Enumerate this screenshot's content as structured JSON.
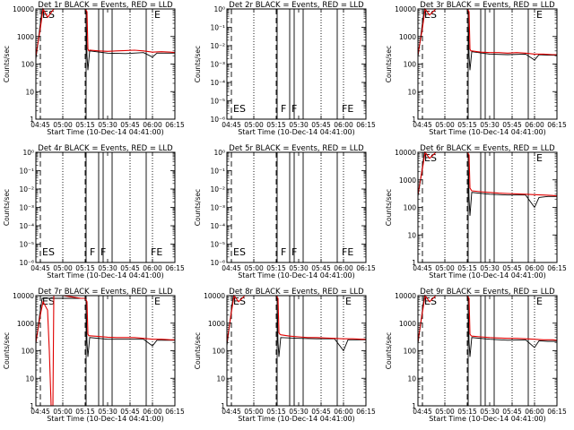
{
  "time_ticks": [
    "04:45",
    "05:00",
    "05:15",
    "05:30",
    "05:45",
    "06:00",
    "06:15"
  ],
  "log_ticks": [
    "1",
    "10",
    "100",
    "1000",
    "10000"
  ],
  "tiny_log_ticks": [
    "10⁻⁶",
    "10⁻⁵",
    "10⁻⁴",
    "10⁻³",
    "10⁻²",
    "10⁻¹",
    "10⁰"
  ],
  "xlabel": "Start Time (10-Dec-14 04:41:00)",
  "ylabel": "Counts/sec",
  "colors": {
    "events": "#000000",
    "lld": "#e00000"
  },
  "chart_data": [
    {
      "type": "line",
      "title": "Det 1r BLACK = Events, RED = LLD",
      "yscale": "log",
      "ylim": [
        1,
        10000
      ],
      "empty": false,
      "flags": [
        {
          "t": 4.75,
          "label": "ES"
        },
        {
          "t": 6.0,
          "label": "E"
        }
      ],
      "series": [
        {
          "name": "Events",
          "t": [
            4.7,
            4.75,
            4.77,
            5.26,
            5.27,
            5.28,
            5.3,
            5.5,
            5.7,
            5.9,
            6.0,
            6.05,
            6.15,
            6.25
          ],
          "values": [
            150,
            3000,
            10000,
            10000,
            200,
            60,
            300,
            250,
            240,
            260,
            180,
            250,
            250,
            250
          ]
        },
        {
          "name": "LLD",
          "t": [
            4.7,
            4.75,
            4.78,
            4.83,
            4.9,
            5.0,
            5.1,
            5.2,
            5.25,
            5.27,
            5.28,
            5.29,
            5.3,
            5.4,
            5.5,
            5.6,
            5.7,
            5.8,
            5.9,
            6.0,
            6.1,
            6.2,
            6.25
          ],
          "values": [
            200,
            2000,
            10000,
            5000,
            10000,
            10000,
            10000,
            10000,
            10000,
            8000,
            350,
            300,
            320,
            300,
            290,
            300,
            310,
            320,
            300,
            270,
            280,
            270,
            260
          ]
        }
      ]
    },
    {
      "type": "line",
      "title": "Det 2r BLACK = Events, RED = LLD",
      "yscale": "log",
      "ylim": [
        1e-06,
        1
      ],
      "empty": true,
      "flags": [
        {
          "t": 4.75,
          "label": "ES"
        },
        {
          "t": 5.28,
          "label": "F"
        },
        {
          "t": 5.4,
          "label": "F"
        },
        {
          "t": 5.96,
          "label": "FE"
        }
      ],
      "series": []
    },
    {
      "type": "line",
      "title": "Det 3r BLACK = Events, RED = LLD",
      "yscale": "log",
      "ylim": [
        1,
        10000
      ],
      "empty": false,
      "flags": [
        {
          "t": 4.75,
          "label": "ES"
        },
        {
          "t": 6.0,
          "label": "E"
        }
      ],
      "series": [
        {
          "name": "Events",
          "t": [
            4.7,
            4.75,
            4.77,
            5.26,
            5.27,
            5.28,
            5.3,
            5.5,
            5.7,
            5.9,
            6.0,
            6.05,
            6.15,
            6.25
          ],
          "values": [
            180,
            3000,
            10000,
            10000,
            200,
            60,
            280,
            230,
            220,
            230,
            140,
            220,
            210,
            210
          ]
        },
        {
          "name": "LLD",
          "t": [
            4.7,
            4.75,
            4.78,
            4.83,
            4.9,
            5.0,
            5.1,
            5.2,
            5.25,
            5.27,
            5.28,
            5.29,
            5.3,
            5.4,
            5.5,
            5.6,
            5.7,
            5.8,
            5.9,
            6.0,
            6.1,
            6.2,
            6.25
          ],
          "values": [
            220,
            2000,
            10000,
            6000,
            10000,
            10000,
            10000,
            10000,
            10000,
            8000,
            350,
            300,
            300,
            270,
            260,
            260,
            250,
            260,
            250,
            230,
            230,
            220,
            220
          ]
        }
      ]
    },
    {
      "type": "line",
      "title": "Det 4r BLACK = Events, RED = LLD",
      "yscale": "log",
      "ylim": [
        1e-06,
        1
      ],
      "empty": true,
      "flags": [
        {
          "t": 4.75,
          "label": "ES"
        },
        {
          "t": 5.28,
          "label": "F"
        },
        {
          "t": 5.4,
          "label": "F"
        },
        {
          "t": 5.96,
          "label": "FE"
        }
      ],
      "series": []
    },
    {
      "type": "line",
      "title": "Det 5r BLACK = Events, RED = LLD",
      "yscale": "log",
      "ylim": [
        1e-06,
        1
      ],
      "empty": true,
      "flags": [
        {
          "t": 4.75,
          "label": "ES"
        },
        {
          "t": 5.28,
          "label": "F"
        },
        {
          "t": 5.4,
          "label": "F"
        },
        {
          "t": 5.96,
          "label": "FE"
        }
      ],
      "series": []
    },
    {
      "type": "line",
      "title": "Det 6r BLACK = Events, RED = LLD",
      "yscale": "log",
      "ylim": [
        1,
        10000
      ],
      "empty": false,
      "flags": [
        {
          "t": 4.75,
          "label": "ES"
        },
        {
          "t": 6.0,
          "label": "E"
        }
      ],
      "series": [
        {
          "name": "Events",
          "t": [
            4.7,
            4.75,
            4.77,
            5.26,
            5.27,
            5.28,
            5.3,
            5.5,
            5.7,
            5.9,
            6.0,
            6.05,
            6.15,
            6.25
          ],
          "values": [
            250,
            3000,
            10000,
            10000,
            200,
            50,
            350,
            300,
            280,
            280,
            100,
            230,
            250,
            250
          ]
        },
        {
          "name": "LLD",
          "t": [
            4.7,
            4.75,
            4.78,
            4.83,
            4.9,
            5.0,
            5.1,
            5.2,
            5.25,
            5.27,
            5.28,
            5.29,
            5.3,
            5.4,
            5.5,
            5.6,
            5.7,
            5.8,
            5.9,
            6.0,
            6.1,
            6.2,
            6.25
          ],
          "values": [
            300,
            2500,
            10000,
            6000,
            10000,
            10000,
            10000,
            10000,
            10000,
            8000,
            500,
            450,
            400,
            370,
            350,
            330,
            320,
            310,
            300,
            290,
            280,
            270,
            260
          ]
        }
      ]
    },
    {
      "type": "line",
      "title": "Det 7r BLACK = Events, RED = LLD",
      "yscale": "log",
      "ylim": [
        1,
        10000
      ],
      "empty": false,
      "flags": [
        {
          "t": 4.75,
          "label": "ES"
        },
        {
          "t": 6.0,
          "label": "E"
        }
      ],
      "series": [
        {
          "name": "Events",
          "t": [
            4.7,
            4.75,
            4.77,
            5.26,
            5.27,
            5.28,
            5.3,
            5.5,
            5.7,
            5.9,
            6.0,
            6.05,
            6.15,
            6.25
          ],
          "values": [
            180,
            3000,
            8000,
            8000,
            200,
            60,
            300,
            260,
            260,
            260,
            150,
            240,
            240,
            240
          ]
        },
        {
          "name": "LLD",
          "t": [
            4.7,
            4.75,
            4.78,
            4.83,
            4.85,
            4.87,
            4.89,
            4.9,
            4.92,
            5.0,
            5.1,
            5.2,
            5.25,
            5.27,
            5.28,
            5.29,
            5.3,
            5.4,
            5.5,
            5.6,
            5.7,
            5.8,
            5.9,
            6.0,
            6.1,
            6.2,
            6.25
          ],
          "values": [
            200,
            2000,
            6000,
            3000,
            100,
            1,
            1,
            10000,
            10000,
            10000,
            9000,
            8000,
            8000,
            6000,
            400,
            350,
            350,
            330,
            310,
            300,
            300,
            300,
            280,
            260,
            260,
            250,
            250
          ]
        }
      ]
    },
    {
      "type": "line",
      "title": "Det 8r BLACK = Events, RED = LLD",
      "yscale": "log",
      "ylim": [
        1,
        10000
      ],
      "empty": false,
      "flags": [
        {
          "t": 4.75,
          "label": "ES"
        },
        {
          "t": 6.0,
          "label": "E"
        }
      ],
      "series": [
        {
          "name": "Events",
          "t": [
            4.7,
            4.75,
            4.77,
            5.26,
            5.27,
            5.28,
            5.3,
            5.5,
            5.7,
            5.9,
            6.0,
            6.05,
            6.15,
            6.25
          ],
          "values": [
            150,
            3000,
            10000,
            10000,
            200,
            60,
            300,
            280,
            270,
            270,
            100,
            250,
            250,
            250
          ]
        },
        {
          "name": "LLD",
          "t": [
            4.7,
            4.75,
            4.78,
            4.83,
            4.9,
            5.0,
            5.1,
            5.2,
            5.25,
            5.27,
            5.28,
            5.29,
            5.3,
            5.4,
            5.5,
            5.6,
            5.7,
            5.8,
            5.9,
            6.0,
            6.1,
            6.2,
            6.25
          ],
          "values": [
            200,
            2500,
            10000,
            6000,
            10000,
            10000,
            10000,
            10000,
            10000,
            8000,
            450,
            400,
            380,
            340,
            320,
            300,
            300,
            290,
            280,
            270,
            270,
            260,
            260
          ]
        }
      ]
    },
    {
      "type": "line",
      "title": "Det 9r BLACK = Events, RED = LLD",
      "yscale": "log",
      "ylim": [
        1,
        10000
      ],
      "empty": false,
      "flags": [
        {
          "t": 4.75,
          "label": "ES"
        },
        {
          "t": 6.0,
          "label": "E"
        }
      ],
      "series": [
        {
          "name": "Events",
          "t": [
            4.7,
            4.75,
            4.77,
            5.26,
            5.27,
            5.28,
            5.3,
            5.5,
            5.7,
            5.9,
            6.0,
            6.05,
            6.15,
            6.25
          ],
          "values": [
            180,
            3000,
            10000,
            10000,
            200,
            60,
            300,
            260,
            240,
            250,
            130,
            230,
            220,
            220
          ]
        },
        {
          "name": "LLD",
          "t": [
            4.7,
            4.75,
            4.78,
            4.83,
            4.9,
            5.0,
            5.1,
            5.2,
            5.25,
            5.27,
            5.28,
            5.29,
            5.3,
            5.4,
            5.5,
            5.6,
            5.7,
            5.8,
            5.9,
            6.0,
            6.1,
            6.2,
            6.25
          ],
          "values": [
            220,
            2500,
            10000,
            6000,
            10000,
            10000,
            10000,
            10000,
            10000,
            8000,
            400,
            360,
            340,
            320,
            300,
            290,
            280,
            280,
            270,
            260,
            250,
            250,
            240
          ]
        }
      ]
    }
  ]
}
